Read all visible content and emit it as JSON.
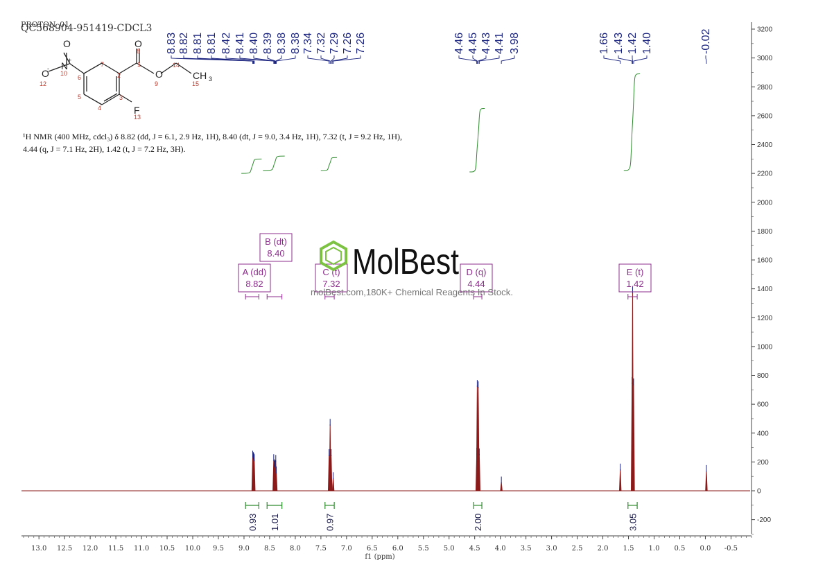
{
  "header": {
    "line1": "PROTON_01",
    "line2": "QC568904-951419-CDCL3"
  },
  "nmr_text": "¹H NMR (400 MHz, cdcl₃) δ 8.82 (dd, J = 6.1, 2.9 Hz, 1H), 8.40 (dt, J = 9.0, 3.4 Hz, 1H), 7.32 (t, J = 9.2 Hz, 1H), 4.44 (q, J = 7.1 Hz, 2H), 1.42 (t, J = 7.2 Hz, 3H).",
  "watermark": {
    "brand": "MolBest",
    "tagline": "molBest.com,180K+ Chemical Reagents In Stock."
  },
  "structure_labels": [
    {
      "text": "O"
    },
    {
      "text": "N"
    },
    {
      "text": "+"
    },
    {
      "text": "O"
    },
    {
      "text": "-"
    },
    {
      "text": "10"
    },
    {
      "text": "12"
    },
    {
      "text": "6"
    },
    {
      "text": "7"
    },
    {
      "text": "8"
    },
    {
      "text": "O"
    },
    {
      "text": "1"
    },
    {
      "text": "2"
    },
    {
      "text": "O"
    },
    {
      "text": "9"
    },
    {
      "text": "14"
    },
    {
      "text": "CH"
    },
    {
      "text": "3"
    },
    {
      "text": "15"
    },
    {
      "text": "5"
    },
    {
      "text": "4"
    },
    {
      "text": "3"
    },
    {
      "text": "F"
    },
    {
      "text": "13"
    }
  ],
  "colors": {
    "spectrum": "#8b1a1a",
    "peak_labels": "#1a237e",
    "integral": "#2e8b2e",
    "annotation": "#8e2d8e",
    "axis": "#444444",
    "logo": "#7dc242"
  },
  "chart_data": {
    "type": "line",
    "title": "",
    "xlabel": "f1 (ppm)",
    "ylabel": "",
    "xlim": [
      13.3,
      -0.9
    ],
    "ylim": [
      -300,
      3250
    ],
    "x_reversed": true,
    "x_ticks": [
      "13.0",
      "12.5",
      "12.0",
      "11.5",
      "11.0",
      "10.5",
      "10.0",
      "9.5",
      "9.0",
      "8.5",
      "8.0",
      "7.5",
      "7.0",
      "6.5",
      "6.0",
      "5.5",
      "5.0",
      "4.5",
      "4.0",
      "3.5",
      "3.0",
      "2.5",
      "2.0",
      "1.5",
      "1.0",
      "0.5",
      "0.0",
      "-0.5"
    ],
    "y_ticks": [
      "3200",
      "3000",
      "2800",
      "2600",
      "2400",
      "2200",
      "2000",
      "1800",
      "1600",
      "1400",
      "1200",
      "1000",
      "800",
      "600",
      "400",
      "200",
      "0",
      "-200"
    ],
    "peaks": [
      {
        "ppm": 8.83,
        "height": 240
      },
      {
        "ppm": 8.82,
        "height": 230
      },
      {
        "ppm": 8.81,
        "height": 225
      },
      {
        "ppm": 8.8,
        "height": 215
      },
      {
        "ppm": 8.42,
        "height": 215
      },
      {
        "ppm": 8.41,
        "height": 180
      },
      {
        "ppm": 8.4,
        "height": 170
      },
      {
        "ppm": 8.39,
        "height": 175
      },
      {
        "ppm": 8.38,
        "height": 210
      },
      {
        "ppm": 8.37,
        "height": 130
      },
      {
        "ppm": 7.34,
        "height": 250
      },
      {
        "ppm": 7.32,
        "height": 460
      },
      {
        "ppm": 7.3,
        "height": 250
      },
      {
        "ppm": 7.26,
        "height": 90
      },
      {
        "ppm": 4.46,
        "height": 260
      },
      {
        "ppm": 4.45,
        "height": 730
      },
      {
        "ppm": 4.43,
        "height": 720
      },
      {
        "ppm": 4.41,
        "height": 255
      },
      {
        "ppm": 3.98,
        "height": 60
      },
      {
        "ppm": 1.66,
        "height": 150
      },
      {
        "ppm": 1.43,
        "height": 750
      },
      {
        "ppm": 1.42,
        "height": 1380
      },
      {
        "ppm": 1.4,
        "height": 740
      },
      {
        "ppm": -0.02,
        "height": 140
      }
    ],
    "peak_labels": [
      {
        "label": "8.83",
        "ppm": 8.83
      },
      {
        "label": "8.82",
        "ppm": 8.82
      },
      {
        "label": "8.81",
        "ppm": 8.81
      },
      {
        "label": "8.81",
        "ppm": 8.8
      },
      {
        "label": "8.42",
        "ppm": 8.42
      },
      {
        "label": "8.41",
        "ppm": 8.41
      },
      {
        "label": "8.40",
        "ppm": 8.4
      },
      {
        "label": "8.39",
        "ppm": 8.39
      },
      {
        "label": "8.38",
        "ppm": 8.38
      },
      {
        "label": "8.38",
        "ppm": 8.37
      },
      {
        "label": "7.34",
        "ppm": 7.34
      },
      {
        "label": "7.32",
        "ppm": 7.32
      },
      {
        "label": "7.29",
        "ppm": 7.3
      },
      {
        "label": "7.26",
        "ppm": 7.28
      },
      {
        "label": "7.26",
        "ppm": 7.26
      },
      {
        "label": "4.46",
        "ppm": 4.46
      },
      {
        "label": "4.45",
        "ppm": 4.45
      },
      {
        "label": "4.43",
        "ppm": 4.43
      },
      {
        "label": "4.41",
        "ppm": 4.41
      },
      {
        "label": "3.98",
        "ppm": 3.98
      },
      {
        "label": "1.66",
        "ppm": 1.66
      },
      {
        "label": "1.43",
        "ppm": 1.43
      },
      {
        "label": "1.42",
        "ppm": 1.42
      },
      {
        "label": "1.40",
        "ppm": 1.4
      },
      {
        "label": "-0.02",
        "ppm": -0.02
      }
    ],
    "multiplets": [
      {
        "letter": "A (dd)",
        "shift": "8.82",
        "range": [
          8.97,
          8.71
        ]
      },
      {
        "letter": "B (dt)",
        "shift": "8.40",
        "range": [
          8.55,
          8.26
        ]
      },
      {
        "letter": "C (t)",
        "shift": "7.32",
        "range": [
          7.42,
          7.24
        ]
      },
      {
        "letter": "D (q)",
        "shift": "4.44",
        "range": [
          4.52,
          4.36
        ]
      },
      {
        "letter": "E (t)",
        "shift": "1.42",
        "range": [
          1.51,
          1.33
        ]
      }
    ],
    "integrals": [
      {
        "value": "0.93",
        "from": 8.97,
        "to": 8.71,
        "y_start": 2200,
        "y_end": 2300
      },
      {
        "value": "1.01",
        "from": 8.55,
        "to": 8.26,
        "y_start": 2220,
        "y_end": 2320
      },
      {
        "value": "0.97",
        "from": 7.42,
        "to": 7.24,
        "y_start": 2220,
        "y_end": 2310
      },
      {
        "value": "2.00",
        "from": 4.52,
        "to": 4.36,
        "y_start": 2210,
        "y_end": 2650
      },
      {
        "value": "3.05",
        "from": 1.51,
        "to": 1.33,
        "y_start": 2220,
        "y_end": 2890
      }
    ]
  }
}
